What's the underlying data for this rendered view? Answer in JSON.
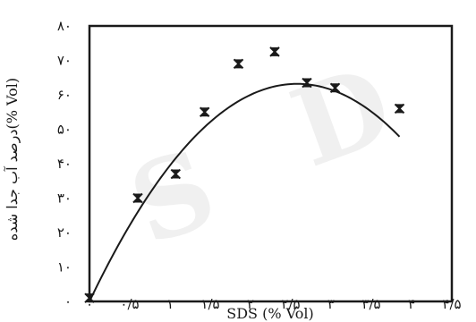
{
  "chart_data": {
    "type": "scatter",
    "title": "",
    "xlabel": "SDS (% Vol)",
    "ylabel": "درصد آب جدا شده(% Vol)",
    "xlim": [
      0,
      4.5
    ],
    "ylim": [
      0,
      80
    ],
    "x_ticks": [
      {
        "value": 0,
        "label": "۰"
      },
      {
        "value": 0.5,
        "label": "۰/۵"
      },
      {
        "value": 1,
        "label": "۱"
      },
      {
        "value": 1.5,
        "label": "۱/۵"
      },
      {
        "value": 2,
        "label": "۲"
      },
      {
        "value": 2.5,
        "label": "۲/۵"
      },
      {
        "value": 3,
        "label": "۳"
      },
      {
        "value": 3.5,
        "label": "۳/۵"
      },
      {
        "value": 4,
        "label": "۴"
      },
      {
        "value": 4.5,
        "label": "۴/۵"
      }
    ],
    "y_ticks": [
      {
        "value": 0,
        "label": "۰"
      },
      {
        "value": 10,
        "label": "۱۰"
      },
      {
        "value": 20,
        "label": "۲۰"
      },
      {
        "value": 30,
        "label": "۳۰"
      },
      {
        "value": 40,
        "label": "۴۰"
      },
      {
        "value": 50,
        "label": "۵۰"
      },
      {
        "value": 60,
        "label": "۶۰"
      },
      {
        "value": 70,
        "label": "۷۰"
      },
      {
        "value": 80,
        "label": "۸۰"
      }
    ],
    "points": [
      {
        "x": 0,
        "y": 1
      },
      {
        "x": 0.6,
        "y": 30
      },
      {
        "x": 1.07,
        "y": 37
      },
      {
        "x": 1.43,
        "y": 55
      },
      {
        "x": 1.85,
        "y": 69
      },
      {
        "x": 2.3,
        "y": 72.5
      },
      {
        "x": 2.7,
        "y": 63.5
      },
      {
        "x": 3.05,
        "y": 62
      },
      {
        "x": 3.85,
        "y": 56
      }
    ],
    "trend": {
      "type": "polynomial",
      "coeffs": [
        0,
        49.0,
        -9.5
      ],
      "x_range": [
        0,
        3.85
      ]
    },
    "grid": false,
    "legend": "none",
    "marker": "x",
    "colors": {
      "ink": "#1a1a1a"
    }
  }
}
